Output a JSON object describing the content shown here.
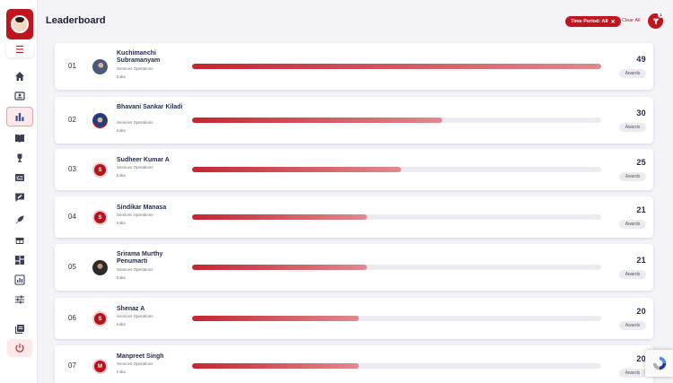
{
  "header": {
    "title": "Leaderboard"
  },
  "filters": {
    "chip_label": "Time Period: All",
    "clear_label": "Clear All",
    "filter_count": "1"
  },
  "sidebar": {
    "items": [
      {
        "name": "home-icon"
      },
      {
        "name": "profile-card-icon"
      },
      {
        "name": "leaderboard-chart-icon",
        "active": true
      },
      {
        "name": "book-icon"
      },
      {
        "name": "trophy-icon"
      },
      {
        "name": "checklist-icon"
      },
      {
        "name": "feedback-icon"
      },
      {
        "name": "rocket-icon"
      },
      {
        "name": "gift-icon"
      },
      {
        "name": "dashboard-icon"
      },
      {
        "name": "report-icon"
      },
      {
        "name": "sliders-icon"
      },
      {
        "name": "library-icon"
      },
      {
        "name": "power-icon"
      }
    ]
  },
  "leaderboard": {
    "max_awards": 49,
    "entries": [
      {
        "rank": "01",
        "name": "Kuchimanchi Subramanyam",
        "department": "Services Operations",
        "country": "India",
        "awards": 49,
        "awards_label": "Awards",
        "avatar": "photo1",
        "initial": ""
      },
      {
        "rank": "02",
        "name": "Bhavani Sankar Kiladi",
        "department": "Services Operations",
        "country": "India",
        "awards": 30,
        "awards_label": "Awards",
        "avatar": "photo2",
        "initial": ""
      },
      {
        "rank": "03",
        "name": "Sudheer Kumar A",
        "department": "Services Operations",
        "country": "India",
        "awards": 25,
        "awards_label": "Awards",
        "avatar": "initial",
        "initial": "S"
      },
      {
        "rank": "04",
        "name": "Sindikar Manasa",
        "department": "Services Operations",
        "country": "India",
        "awards": 21,
        "awards_label": "Awards",
        "avatar": "initial",
        "initial": "S"
      },
      {
        "rank": "05",
        "name": "Srirama Murthy Penumarti",
        "department": "Services Operations",
        "country": "India",
        "awards": 21,
        "awards_label": "Awards",
        "avatar": "photo3",
        "initial": ""
      },
      {
        "rank": "06",
        "name": "Shenaz A",
        "department": "Services Operations",
        "country": "India",
        "awards": 20,
        "awards_label": "Awards",
        "avatar": "initial",
        "initial": "S"
      },
      {
        "rank": "07",
        "name": "Manpreet Singh",
        "department": "Services Operations",
        "country": "India",
        "awards": 20,
        "awards_label": "Awards",
        "avatar": "initial",
        "initial": "M"
      }
    ]
  },
  "colors": {
    "accent": "#c0141e",
    "bar_start": "#c52530",
    "bar_end": "#e08a90"
  }
}
